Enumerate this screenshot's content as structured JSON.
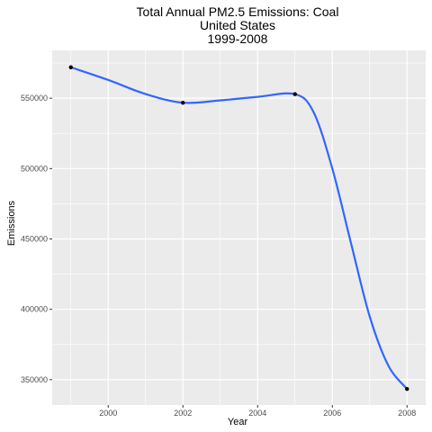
{
  "chart_data": {
    "type": "line",
    "title_lines": [
      "Total Annual PM2.5 Emissions: Coal",
      "United States",
      "1999-2008"
    ],
    "xlabel": "Year",
    "ylabel": "Emissions",
    "x_ticks": [
      2000,
      2002,
      2004,
      2006,
      2008
    ],
    "y_ticks": [
      350000,
      400000,
      450000,
      500000,
      550000
    ],
    "y_tick_labels": [
      "350000",
      "400000",
      "450000",
      "500000",
      "550000"
    ],
    "xlim": [
      1998.5,
      2008.5
    ],
    "ylim": [
      332000,
      584000
    ],
    "grid": true,
    "points": [
      {
        "x": 1999,
        "y": 572000
      },
      {
        "x": 2002,
        "y": 546800
      },
      {
        "x": 2005,
        "y": 552900
      },
      {
        "x": 2008,
        "y": 343400
      }
    ],
    "smooth": [
      {
        "x": 1999,
        "y": 572000
      },
      {
        "x": 2000,
        "y": 563000
      },
      {
        "x": 2001,
        "y": 553000
      },
      {
        "x": 2002,
        "y": 546800
      },
      {
        "x": 2003,
        "y": 548500
      },
      {
        "x": 2004,
        "y": 551000
      },
      {
        "x": 2005,
        "y": 552900
      },
      {
        "x": 2005.5,
        "y": 540000
      },
      {
        "x": 2006,
        "y": 500000
      },
      {
        "x": 2006.5,
        "y": 447000
      },
      {
        "x": 2007,
        "y": 395000
      },
      {
        "x": 2007.5,
        "y": 360000
      },
      {
        "x": 2008,
        "y": 343400
      }
    ],
    "colors": {
      "panel": "#ebebeb",
      "grid_major": "#ffffff",
      "line": "#3366ff",
      "point": "#000000",
      "tick": "#4d4d4d"
    }
  }
}
